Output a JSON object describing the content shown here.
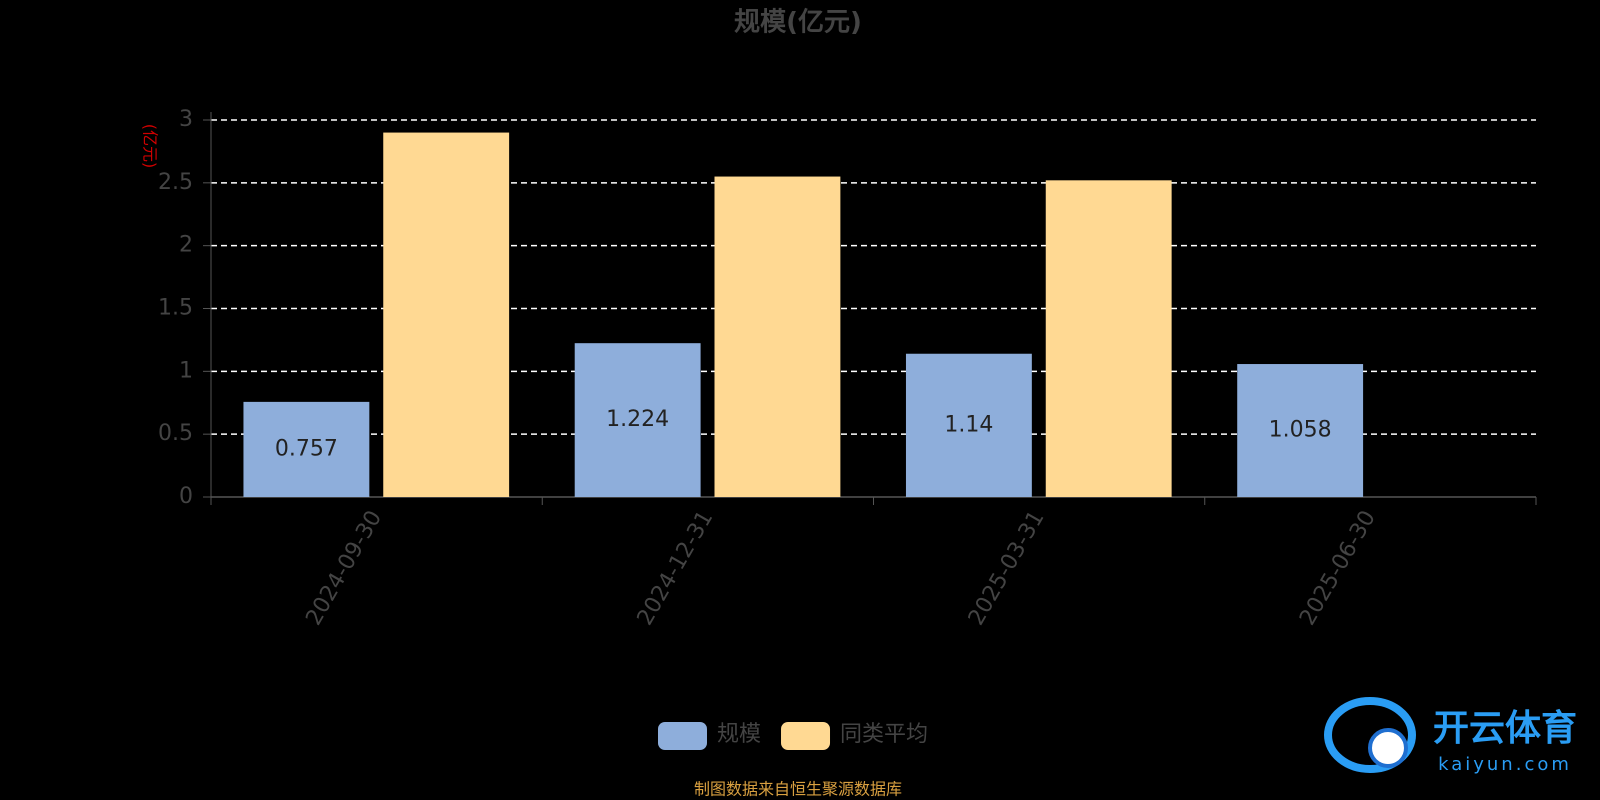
{
  "chart_data": {
    "type": "bar",
    "title": "规模(亿元)",
    "y_label": "(亿元)",
    "categories": [
      "2024-09-30",
      "2024-12-31",
      "2025-03-31",
      "2025-06-30"
    ],
    "series": [
      {
        "name": "规模",
        "color": "#8eaedb",
        "values": [
          0.757,
          1.224,
          1.14,
          1.058
        ]
      },
      {
        "name": "同类平均",
        "color": "#ffd993",
        "values": [
          2.9,
          2.55,
          2.52,
          null
        ]
      }
    ],
    "ylim": [
      0,
      3
    ],
    "yticks": [
      0,
      0.5,
      1,
      1.5,
      2,
      2.5,
      3
    ],
    "grid": true,
    "source": "制图数据来自恒生聚源数据库"
  },
  "watermark": {
    "name": "开云体育",
    "url": "kaiyun.com"
  }
}
